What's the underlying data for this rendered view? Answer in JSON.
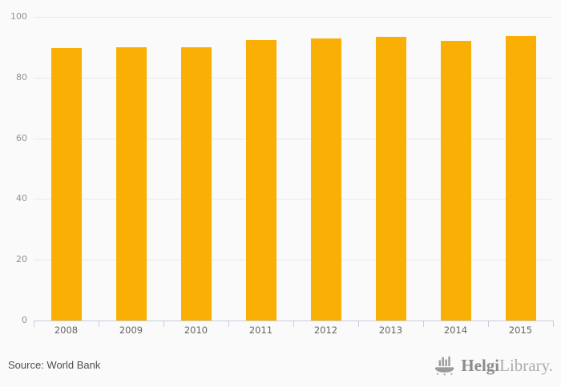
{
  "chart_data": {
    "type": "bar",
    "title": "",
    "xlabel": "",
    "ylabel": "",
    "categories": [
      "2008",
      "2009",
      "2010",
      "2011",
      "2012",
      "2013",
      "2014",
      "2015"
    ],
    "values": [
      89.7,
      90.1,
      90.0,
      92.4,
      92.8,
      93.4,
      92.2,
      93.7
    ],
    "ylim": [
      0,
      100
    ],
    "yticks": [
      0,
      20,
      40,
      60,
      80,
      100
    ],
    "grid": true,
    "legend": false,
    "bar_color": "#F9AF03"
  },
  "style": {
    "background": "#fafafa",
    "grid_color": "#e8e8e8",
    "axis_line_color": "#c9cfda",
    "y_label_color": "#929292",
    "x_label_color": "#656565"
  },
  "footer": {
    "source": "Source: World Bank",
    "logo": {
      "bold": "Helgi",
      "light": "Library.",
      "icon": "helgi-ship-bar-chart-icon"
    }
  }
}
